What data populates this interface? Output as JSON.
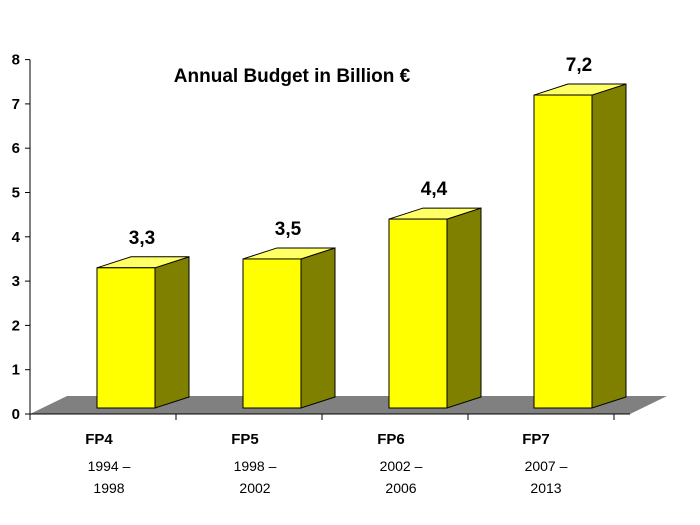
{
  "chart_data": {
    "type": "bar",
    "title": "Annual Budget in Billion €",
    "categories": [
      "FP4",
      "FP5",
      "FP6",
      "FP7"
    ],
    "periods": [
      [
        "1994 –",
        "1998"
      ],
      [
        "1998 –",
        "2002"
      ],
      [
        "2002 –",
        "2006"
      ],
      [
        "2007 –",
        "2013"
      ]
    ],
    "values": [
      3.3,
      3.5,
      4.4,
      7.2
    ],
    "value_labels": [
      "3,3",
      "3,5",
      "4,4",
      "7,2"
    ],
    "ylim": [
      0,
      8
    ],
    "yticks": [
      0,
      1,
      2,
      3,
      4,
      5,
      6,
      7,
      8
    ],
    "xlabel": "",
    "ylabel": "",
    "grid": false,
    "style": "3d",
    "colors": {
      "bar_front": "#ffff00",
      "bar_side": "#808000",
      "bar_top": "#ffff66",
      "floor": "#808080"
    }
  }
}
